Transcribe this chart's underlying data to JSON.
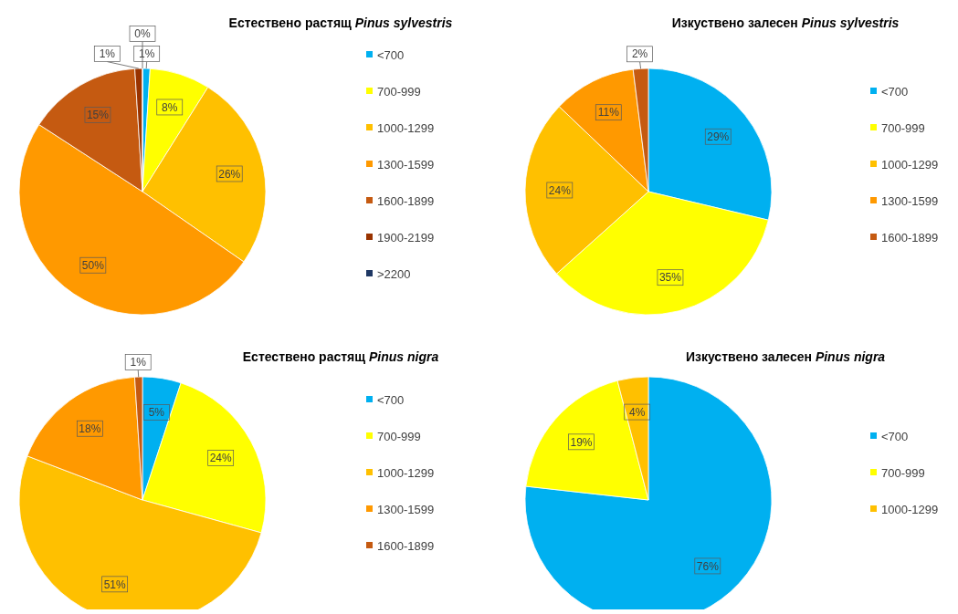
{
  "chart_data": [
    {
      "type": "pie",
      "title": "Естествено растящ Pinus sylvestris",
      "categories": [
        "<700",
        "700-999",
        "1000-1299",
        "1300-1599",
        "1600-1899",
        "1900-2199",
        ">2200"
      ],
      "values": [
        1,
        8,
        26,
        50,
        15,
        1,
        0
      ],
      "value_labels": [
        "1%",
        "8%",
        "26%",
        "50%",
        "15%",
        "1%",
        "0%"
      ],
      "colors": [
        "#00b0f0",
        "#ffff00",
        "#ffc000",
        "#ff9900",
        "#c55a11",
        "#993300",
        "#1f3864"
      ],
      "legend": "right"
    },
    {
      "type": "pie",
      "title": "Изкуствено залесен Pinus sylvestris",
      "categories": [
        "<700",
        "700-999",
        "1000-1299",
        "1300-1599",
        "1600-1899"
      ],
      "values": [
        29,
        35,
        24,
        11,
        2
      ],
      "value_labels": [
        "29%",
        "35%",
        "24%",
        "11%",
        "2%"
      ],
      "colors": [
        "#00b0f0",
        "#ffff00",
        "#ffc000",
        "#ff9900",
        "#c55a11"
      ],
      "legend": "right"
    },
    {
      "type": "pie",
      "title": "Естествено растящ Pinus nigra",
      "categories": [
        "<700",
        "700-999",
        "1000-1299",
        "1300-1599",
        "1600-1899"
      ],
      "values": [
        5,
        24,
        51,
        18,
        1
      ],
      "value_labels": [
        "5%",
        "24%",
        "51%",
        "18%",
        "1%"
      ],
      "colors": [
        "#00b0f0",
        "#ffff00",
        "#ffc000",
        "#ff9900",
        "#c55a11"
      ],
      "legend": "right"
    },
    {
      "type": "pie",
      "title": "Изкуствено залесен Pinus nigra",
      "categories": [
        "<700",
        "700-999",
        "1000-1299"
      ],
      "values": [
        76,
        19,
        4
      ],
      "value_labels": [
        "76%",
        "19%",
        "4%"
      ],
      "colors": [
        "#00b0f0",
        "#ffff00",
        "#ffc000"
      ],
      "legend": "right"
    }
  ]
}
